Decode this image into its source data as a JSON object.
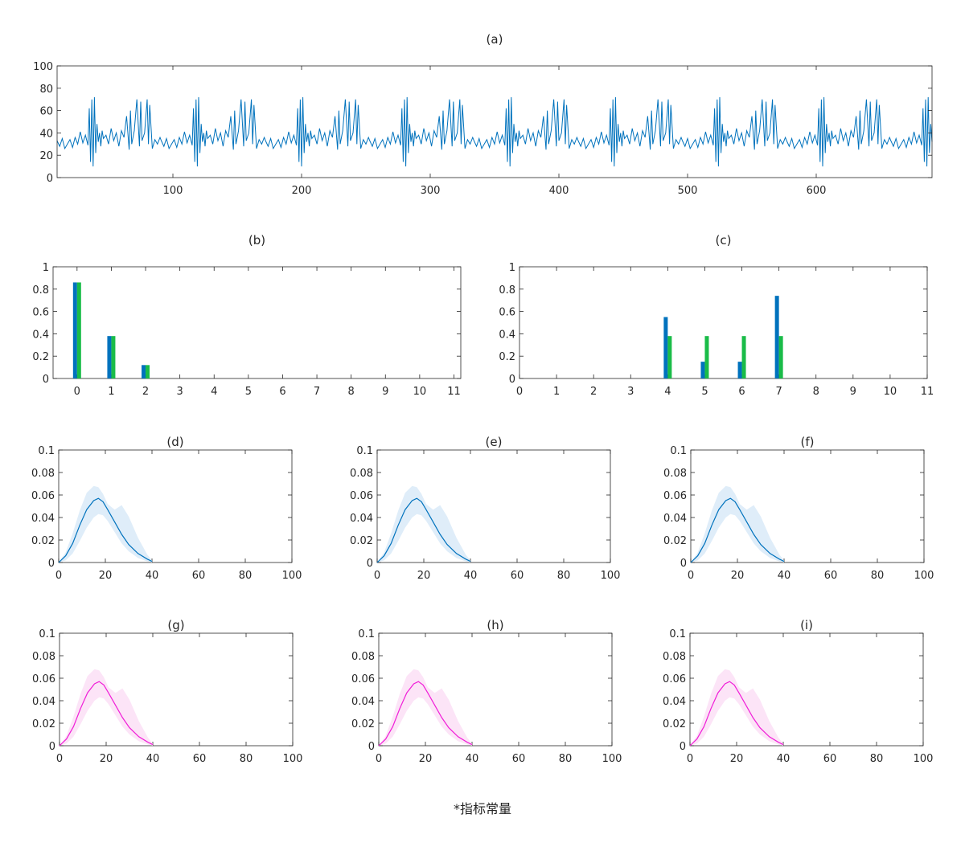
{
  "footer_note": "*指标常量",
  "colors": {
    "blue_series": "#0072BD",
    "green_series": "#1ABC48",
    "blue_line": "#0072BD",
    "blue_band": "#DCEBF8",
    "magenta_line": "#F01ED8",
    "magenta_band": "#FCE1F6",
    "axis": "#262626"
  },
  "chart_data": [
    {
      "id": "a",
      "type": "line",
      "title": "(a)",
      "xlim": [
        10,
        690
      ],
      "ylim": [
        0,
        100
      ],
      "xticks": [
        100,
        200,
        300,
        400,
        500,
        600
      ],
      "yticks": [
        0,
        20,
        40,
        60,
        80,
        100
      ],
      "pattern": {
        "period": 81,
        "x_start": 10,
        "x_end": 690,
        "cycle_x": [
          0,
          2,
          4,
          6,
          8,
          10,
          12,
          14,
          16,
          18,
          20,
          22,
          24,
          25,
          26,
          27,
          28,
          29,
          30,
          31,
          32,
          33,
          34,
          35,
          36,
          38,
          40,
          42,
          44,
          46,
          48,
          50,
          52,
          54,
          56,
          57,
          58,
          60,
          62,
          64,
          65,
          66,
          68,
          70,
          71,
          72,
          74,
          76,
          78,
          80
        ],
        "cycle_y": [
          33,
          28,
          35,
          26,
          30,
          34,
          27,
          36,
          30,
          41,
          31,
          38,
          29,
          62,
          14,
          70,
          10,
          72,
          22,
          48,
          32,
          40,
          28,
          42,
          35,
          38,
          30,
          44,
          33,
          40,
          28,
          42,
          36,
          55,
          25,
          60,
          30,
          42,
          70,
          28,
          68,
          33,
          40,
          70,
          30,
          65,
          26,
          34,
          30,
          36
        ]
      }
    },
    {
      "id": "b",
      "type": "bar",
      "title": "(b)",
      "xlim": [
        -0.7,
        11.2
      ],
      "ylim": [
        0,
        1
      ],
      "xticks": [
        0,
        1,
        2,
        3,
        4,
        5,
        6,
        7,
        8,
        9,
        10,
        11
      ],
      "yticks": [
        0,
        0.2,
        0.4,
        0.6,
        0.8,
        1
      ],
      "x": [
        0,
        1,
        2
      ],
      "series": [
        {
          "values": [
            0.86,
            0.38,
            0.12
          ],
          "color": "#0072BD"
        },
        {
          "values": [
            0.86,
            0.38,
            0.12
          ],
          "color": "#1ABC48"
        }
      ]
    },
    {
      "id": "c",
      "type": "bar",
      "title": "(c)",
      "xlim": [
        0,
        11
      ],
      "ylim": [
        0,
        1
      ],
      "xticks": [
        0,
        1,
        2,
        3,
        4,
        5,
        6,
        7,
        8,
        9,
        10,
        11
      ],
      "yticks": [
        0,
        0.2,
        0.4,
        0.6,
        0.8,
        1
      ],
      "x": [
        4,
        5,
        6,
        7
      ],
      "series": [
        {
          "values": [
            0.55,
            0.15,
            0.15,
            0.74
          ],
          "color": "#0072BD"
        },
        {
          "values": [
            0.38,
            0.38,
            0.38,
            0.38
          ],
          "color": "#1ABC48"
        }
      ]
    },
    {
      "id": "d",
      "type": "area",
      "title": "(d)",
      "xlim": [
        0,
        100
      ],
      "ylim": [
        0,
        0.1
      ],
      "xticks": [
        0,
        20,
        40,
        60,
        80,
        100
      ],
      "yticks": [
        0,
        0.02,
        0.04,
        0.06,
        0.08,
        0.1
      ],
      "line_color": "#0072BD",
      "band_color": "#DCEBF8"
    },
    {
      "id": "e",
      "type": "area",
      "title": "(e)",
      "xlim": [
        0,
        100
      ],
      "ylim": [
        0,
        0.1
      ],
      "xticks": [
        0,
        20,
        40,
        60,
        80,
        100
      ],
      "yticks": [
        0,
        0.02,
        0.04,
        0.06,
        0.08,
        0.1
      ],
      "line_color": "#0072BD",
      "band_color": "#DCEBF8"
    },
    {
      "id": "f",
      "type": "area",
      "title": "(f)",
      "xlim": [
        0,
        100
      ],
      "ylim": [
        0,
        0.1
      ],
      "xticks": [
        0,
        20,
        40,
        60,
        80,
        100
      ],
      "yticks": [
        0,
        0.02,
        0.04,
        0.06,
        0.08,
        0.1
      ],
      "line_color": "#0072BD",
      "band_color": "#DCEBF8"
    },
    {
      "id": "g",
      "type": "area",
      "title": "(g)",
      "xlim": [
        0,
        100
      ],
      "ylim": [
        0,
        0.1
      ],
      "xticks": [
        0,
        20,
        40,
        60,
        80,
        100
      ],
      "yticks": [
        0,
        0.02,
        0.04,
        0.06,
        0.08,
        0.1
      ],
      "line_color": "#F01ED8",
      "band_color": "#FCE1F6"
    },
    {
      "id": "h",
      "type": "area",
      "title": "(h)",
      "xlim": [
        0,
        100
      ],
      "ylim": [
        0,
        0.1
      ],
      "xticks": [
        0,
        20,
        40,
        60,
        80,
        100
      ],
      "yticks": [
        0,
        0.02,
        0.04,
        0.06,
        0.08,
        0.1
      ],
      "line_color": "#F01ED8",
      "band_color": "#FCE1F6"
    },
    {
      "id": "i",
      "type": "area",
      "title": "(i)",
      "xlim": [
        0,
        100
      ],
      "ylim": [
        0,
        0.1
      ],
      "xticks": [
        0,
        20,
        40,
        60,
        80,
        100
      ],
      "yticks": [
        0,
        0.02,
        0.04,
        0.06,
        0.08,
        0.1
      ],
      "line_color": "#F01ED8",
      "band_color": "#FCE1F6"
    }
  ],
  "density_curve": {
    "x": [
      0,
      3,
      6,
      9,
      12,
      15,
      17,
      19,
      21,
      24,
      27,
      30,
      34,
      38,
      40
    ],
    "line": [
      0,
      0.006,
      0.017,
      0.033,
      0.047,
      0.055,
      0.057,
      0.054,
      0.047,
      0.036,
      0.025,
      0.016,
      0.008,
      0.003,
      0.001
    ],
    "band_upper": [
      0,
      0.009,
      0.026,
      0.046,
      0.062,
      0.068,
      0.067,
      0.061,
      0.052,
      0.047,
      0.051,
      0.041,
      0.022,
      0.007,
      0.002
    ],
    "band_lower": [
      0,
      0.002,
      0.008,
      0.019,
      0.031,
      0.04,
      0.043,
      0.042,
      0.037,
      0.027,
      0.017,
      0.01,
      0.004,
      0.001,
      0
    ]
  }
}
